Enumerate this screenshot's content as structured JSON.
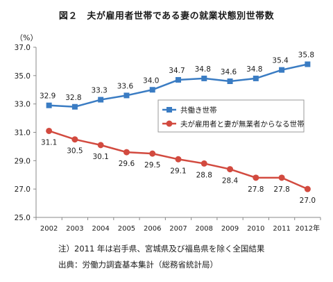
{
  "title": "図２　夫が雇用者世帯である妻の就業状態別世帯数",
  "unit": "（%）",
  "notes": {
    "note": "注）2011 年は岩手県、宮城県及び福島県を除く全国結果",
    "source": "出典：労働力調査基本集計（総務省統計局）"
  },
  "colors": {
    "series1": "#3a7cc3",
    "series2": "#d24a3f",
    "axis": "#888888"
  },
  "chart_data": {
    "type": "line",
    "title": "図２　夫が雇用者世帯である妻の就業状態別世帯数",
    "ylabel": "（%）",
    "xlabel": "",
    "ylim": [
      25.0,
      37.0
    ],
    "yticks": [
      "25.0",
      "27.0",
      "29.0",
      "31.0",
      "33.0",
      "35.0",
      "37.0"
    ],
    "x": [
      "2002",
      "2003",
      "2004",
      "2005",
      "2006",
      "2007",
      "2008",
      "2009",
      "2010",
      "2011",
      "2012年"
    ],
    "grid": false,
    "legend": "inside right",
    "series": [
      {
        "name": "共働き世帯",
        "values": [
          32.9,
          32.8,
          33.3,
          33.6,
          34.0,
          34.7,
          34.8,
          34.6,
          34.8,
          35.4,
          35.8
        ],
        "labels": [
          "32.9",
          "32.8",
          "33.3",
          "33.6",
          "34.0",
          "34.7",
          "34.8",
          "34.6",
          "34.8",
          "35.4",
          "35.8"
        ]
      },
      {
        "name": "夫が雇用者と妻が無業者からなる世帯",
        "values": [
          31.1,
          30.5,
          30.1,
          29.6,
          29.5,
          29.1,
          28.8,
          28.4,
          27.8,
          27.8,
          27.0
        ],
        "labels": [
          "31.1",
          "30.5",
          "30.1",
          "29.6",
          "29.5",
          "29.1",
          "28.8",
          "28.4",
          "27.8",
          "27.8",
          "27.0"
        ]
      }
    ]
  }
}
